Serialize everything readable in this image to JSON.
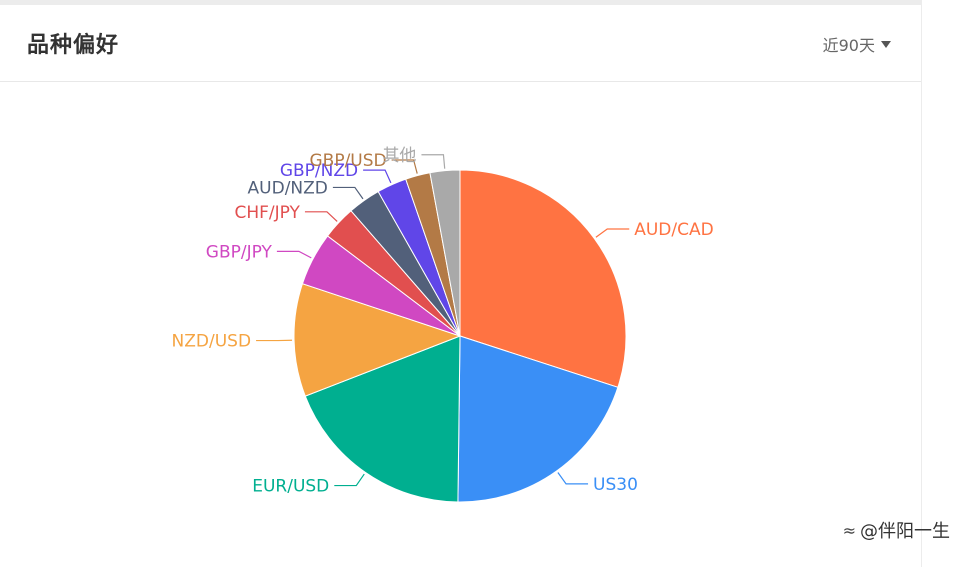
{
  "header": {
    "title": "品种偏好",
    "range_label": "近90天"
  },
  "watermark": {
    "text": "@伴阳一生",
    "icon": "signal-logo-icon"
  },
  "chart_data": {
    "type": "pie",
    "title": "",
    "categories": [
      "AUD/CAD",
      "US30",
      "EUR/USD",
      "NZD/USD",
      "GBP/JPY",
      "CHF/JPY",
      "AUD/NZD",
      "GBP/NZD",
      "GBP/USD",
      "其他"
    ],
    "values": [
      30.0,
      20.2,
      18.9,
      11.0,
      5.2,
      3.3,
      3.2,
      2.9,
      2.4,
      2.9
    ],
    "unit": "%",
    "colors": [
      "#ff7342",
      "#3a8ff6",
      "#00af90",
      "#f5a442",
      "#d048c2",
      "#e14f4f",
      "#52607a",
      "#6046e8",
      "#b37a46",
      "#a9a9a9"
    ],
    "legend": "none",
    "labels": "outside-with-leader-lines"
  }
}
